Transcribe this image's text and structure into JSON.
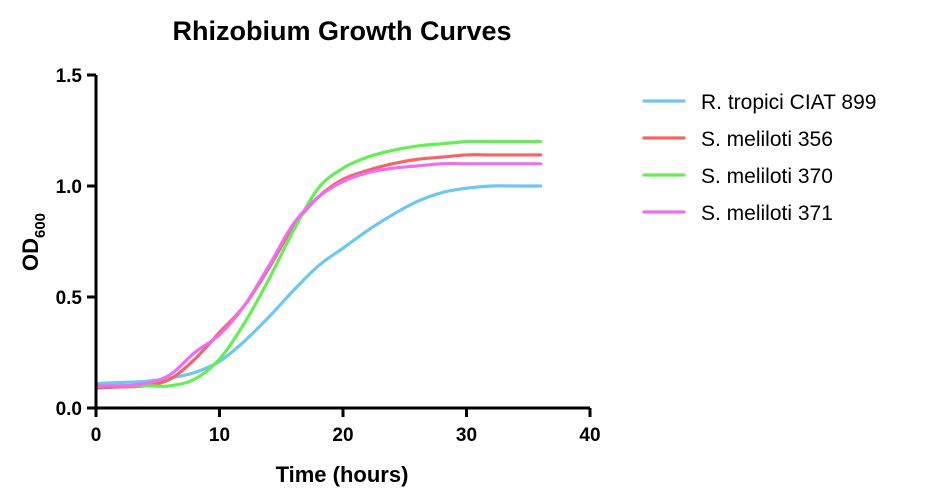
{
  "chart_data": {
    "type": "line",
    "title": "Rhizobium Growth Curves",
    "xlabel": "Time (hours)",
    "ylabel": "OD",
    "ylabel_subscript": "600",
    "xlim": [
      0,
      40
    ],
    "ylim": [
      0,
      1.5
    ],
    "xticks": [
      "0",
      "10",
      "20",
      "30",
      "40"
    ],
    "yticks": [
      "0.0",
      "0.5",
      "1.0",
      "1.5"
    ],
    "grid": false,
    "legend_position": "right",
    "series": [
      {
        "name": "R. tropici CIAT 899",
        "color": "#6ec6f5",
        "x": [
          0,
          2,
          4,
          6,
          8,
          10,
          12,
          14,
          16,
          18,
          20,
          22,
          24,
          26,
          28,
          30,
          32,
          34,
          36
        ],
        "values": [
          0.11,
          0.115,
          0.12,
          0.135,
          0.16,
          0.21,
          0.3,
          0.41,
          0.53,
          0.64,
          0.72,
          0.8,
          0.87,
          0.93,
          0.97,
          0.99,
          1.0,
          1.0,
          1.0
        ]
      },
      {
        "name": "S. meliloti 356",
        "color": "#f26666",
        "x": [
          0,
          2,
          4,
          6,
          8,
          10,
          12,
          14,
          16,
          18,
          20,
          22,
          24,
          26,
          28,
          30,
          32,
          34,
          36
        ],
        "values": [
          0.09,
          0.095,
          0.1,
          0.13,
          0.22,
          0.34,
          0.46,
          0.63,
          0.82,
          0.95,
          1.03,
          1.07,
          1.1,
          1.12,
          1.13,
          1.14,
          1.14,
          1.14,
          1.14
        ]
      },
      {
        "name": "S. meliloti 370",
        "color": "#66ee55",
        "x": [
          0,
          2,
          4,
          6,
          8,
          10,
          12,
          14,
          16,
          18,
          20,
          22,
          24,
          26,
          28,
          30,
          32,
          34,
          36
        ],
        "values": [
          0.1,
          0.1,
          0.1,
          0.1,
          0.13,
          0.22,
          0.38,
          0.58,
          0.8,
          0.99,
          1.08,
          1.13,
          1.16,
          1.18,
          1.19,
          1.2,
          1.2,
          1.2,
          1.2
        ]
      },
      {
        "name": "S. meliloti 371",
        "color": "#f06cf0",
        "x": [
          0,
          2,
          4,
          6,
          8,
          10,
          12,
          14,
          16,
          18,
          20,
          22,
          24,
          26,
          28,
          30,
          32,
          34,
          36
        ],
        "values": [
          0.1,
          0.1,
          0.11,
          0.15,
          0.25,
          0.33,
          0.46,
          0.64,
          0.83,
          0.95,
          1.02,
          1.06,
          1.08,
          1.09,
          1.1,
          1.1,
          1.1,
          1.1,
          1.1
        ]
      }
    ]
  }
}
